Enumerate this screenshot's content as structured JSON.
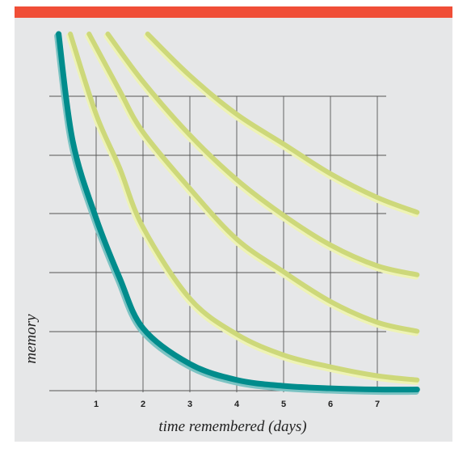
{
  "colors": {
    "top_bar": "#f04e37",
    "panel_background": "#e6e7e8",
    "grid": "#555555",
    "forgetting_curve": "#008c8c",
    "forgetting_curve_shadow": "#7cc3c3",
    "review_curves": "#cdd87a",
    "review_curves_highlight": "#eef3b4"
  },
  "chart_data": {
    "type": "line",
    "xlabel": "time remembered (days)",
    "ylabel": "memory",
    "x_ticks": [
      "1",
      "2",
      "3",
      "4",
      "5",
      "6",
      "7"
    ],
    "xlim": [
      0,
      8
    ],
    "ylim": [
      0,
      6
    ],
    "grid": true,
    "series": [
      {
        "color": "teal",
        "x": [
          0.2,
          0.5,
          1.0,
          1.5,
          2.0,
          3.0,
          4.0,
          5.0,
          6.0,
          7.0,
          7.85
        ],
        "y": [
          6.0,
          4.2,
          2.9,
          1.9,
          1.05,
          0.45,
          0.18,
          0.08,
          0.04,
          0.02,
          0.02
        ]
      },
      {
        "color": "yellow",
        "x": [
          0.45,
          1.0,
          1.5,
          2.0,
          3.0,
          4.0,
          5.0,
          6.0,
          7.0,
          7.85
        ],
        "y": [
          6.0,
          4.65,
          3.75,
          2.75,
          1.55,
          0.95,
          0.6,
          0.4,
          0.25,
          0.18
        ]
      },
      {
        "color": "yellow",
        "x": [
          0.85,
          1.5,
          2.0,
          3.0,
          4.0,
          5.0,
          6.0,
          7.0,
          7.85
        ],
        "y": [
          6.0,
          5.05,
          4.35,
          3.4,
          2.55,
          2.0,
          1.5,
          1.15,
          1.0
        ]
      },
      {
        "color": "yellow",
        "x": [
          1.25,
          2.0,
          3.0,
          4.0,
          5.0,
          6.0,
          7.0,
          7.85
        ],
        "y": [
          6.0,
          5.2,
          4.3,
          3.55,
          2.95,
          2.45,
          2.1,
          1.95
        ]
      },
      {
        "color": "yellow",
        "x": [
          2.1,
          3.0,
          4.0,
          5.0,
          6.0,
          7.0,
          7.85
        ],
        "y": [
          6.0,
          5.3,
          4.65,
          4.15,
          3.65,
          3.25,
          3.0
        ]
      }
    ]
  }
}
